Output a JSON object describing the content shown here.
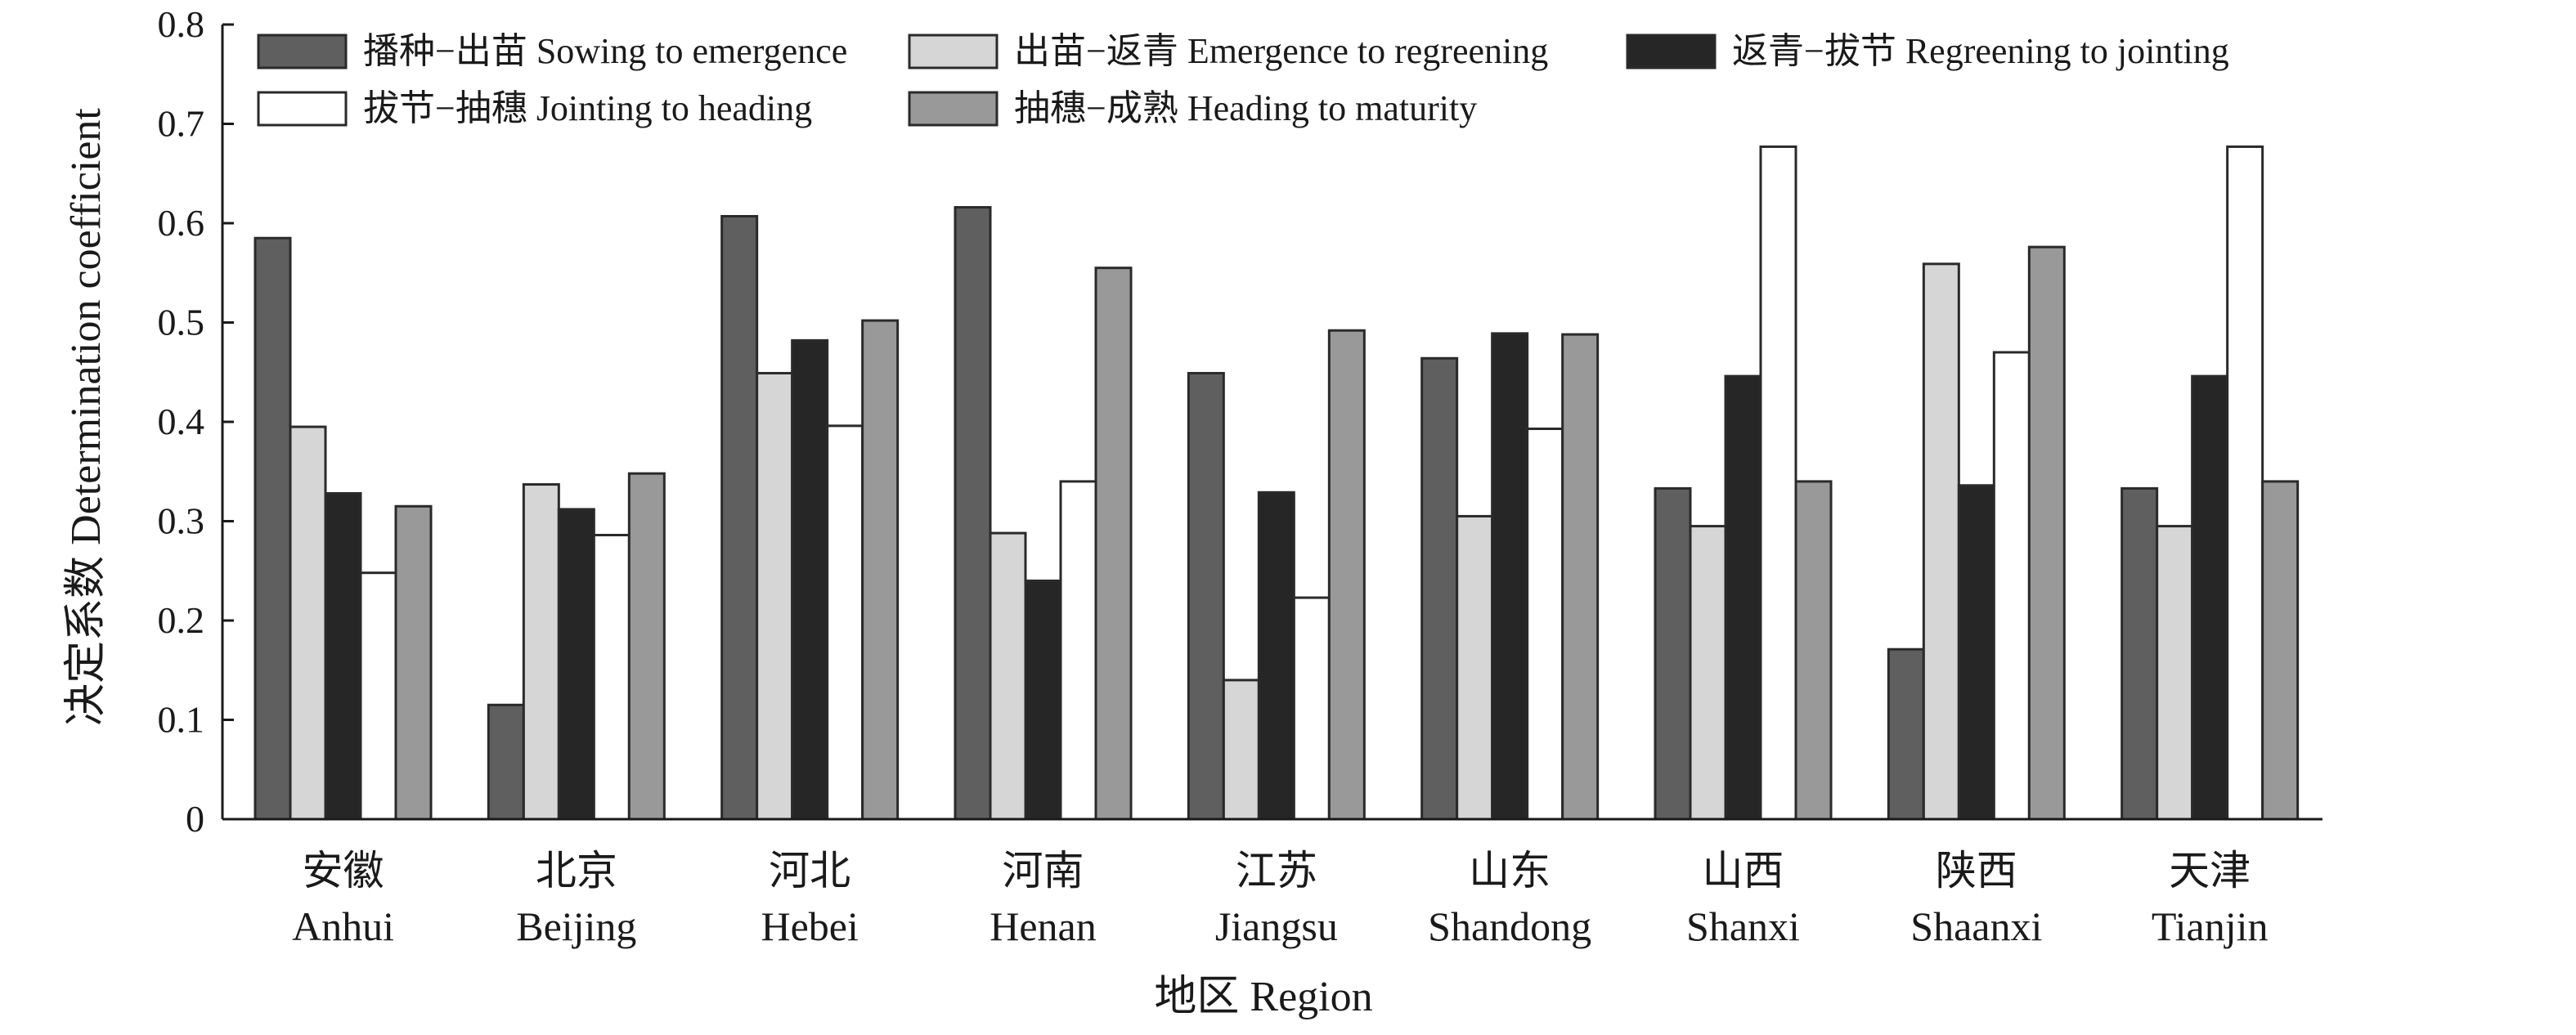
{
  "chart_data": {
    "type": "bar",
    "title": "",
    "xlabel": "地区 Region",
    "ylabel": "决定系数 Determination coefficient",
    "ylim": [
      0,
      0.8
    ],
    "yticks": [
      "0",
      "0.1",
      "0.2",
      "0.3",
      "0.4",
      "0.5",
      "0.6",
      "0.7",
      "0.8"
    ],
    "grid": false,
    "legend_position": "top",
    "categories": [
      {
        "cn": "安徽",
        "en": "Anhui"
      },
      {
        "cn": "北京",
        "en": "Beijing"
      },
      {
        "cn": "河北",
        "en": "Hebei"
      },
      {
        "cn": "河南",
        "en": "Henan"
      },
      {
        "cn": "江苏",
        "en": "Jiangsu"
      },
      {
        "cn": "山东",
        "en": "Shandong"
      },
      {
        "cn": "山西",
        "en": "Shanxi"
      },
      {
        "cn": "陕西",
        "en": "Shaanxi"
      },
      {
        "cn": "天津",
        "en": "Tianjin"
      }
    ],
    "series": [
      {
        "name": "播种−出苗 Sowing to emergence",
        "color": "#5f5f5f",
        "values": [
          0.585,
          0.115,
          0.607,
          0.616,
          0.449,
          0.464,
          0.333,
          0.171,
          0.333
        ]
      },
      {
        "name": "出苗−返青 Emergence to regreening",
        "color": "#d6d6d6",
        "values": [
          0.395,
          0.337,
          0.449,
          0.288,
          0.14,
          0.305,
          0.295,
          0.559,
          0.295
        ]
      },
      {
        "name": "返青−拔节 Regreening to jointing",
        "color": "#262626",
        "values": [
          0.328,
          0.312,
          0.482,
          0.24,
          0.329,
          0.489,
          0.446,
          0.336,
          0.446
        ]
      },
      {
        "name": "拔节−抽穗 Jointing to heading",
        "color": "#ffffff",
        "values": [
          0.248,
          0.286,
          0.396,
          0.34,
          0.223,
          0.393,
          0.677,
          0.47,
          0.677
        ]
      },
      {
        "name": "抽穗−成熟 Heading to maturity",
        "color": "#999999",
        "values": [
          0.315,
          0.348,
          0.502,
          0.555,
          0.492,
          0.488,
          0.34,
          0.576,
          0.34
        ]
      }
    ]
  }
}
